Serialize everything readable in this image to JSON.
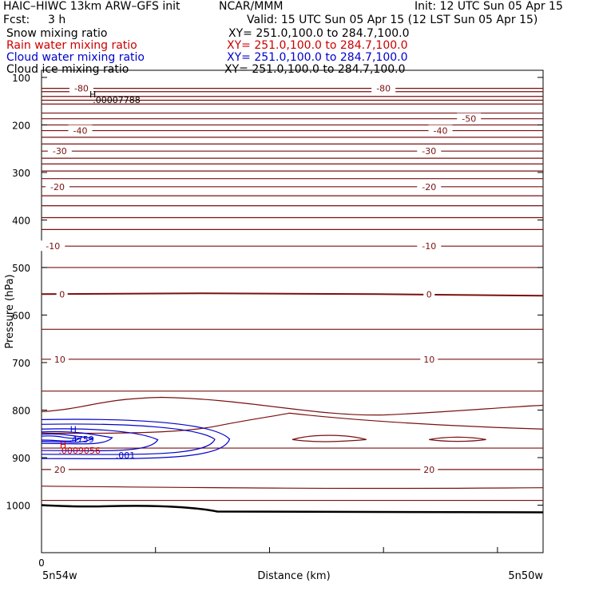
{
  "header": {
    "title_left": "HAIC–HIWC 13km ARW–GFS init",
    "org": "NCAR/MMM",
    "init": "Init: 12 UTC Sun 05 Apr 15",
    "fcst_label": "Fcst:",
    "fcst_value": "3 h",
    "valid": "Valid: 15 UTC Sun 05 Apr 15 (12 LST Sun 05 Apr 15)"
  },
  "legend": [
    {
      "field": "Snow mixing ratio",
      "xy": "XY= 251.0,100.0 to 284.7,100.0",
      "color": "#000000"
    },
    {
      "field": "Rain water mixing ratio",
      "xy": "XY= 251.0,100.0 to 284.7,100.0",
      "color": "#cc0000"
    },
    {
      "field": "Cloud water mixing ratio",
      "xy": "XY= 251.0,100.0 to 284.7,100.0",
      "color": "#0000cc"
    },
    {
      "field": "Cloud ice mixing ratio",
      "xy": "XY= 251.0,100.0 to 284.7,100.0",
      "color": "#000000"
    }
  ],
  "chart_data": {
    "type": "contour cross-section",
    "ylabel": "Pressure (hPa)",
    "xlabel": "Distance (km)",
    "yticks": [
      100,
      200,
      300,
      400,
      500,
      600,
      700,
      800,
      900,
      1000
    ],
    "ylim": [
      1100,
      85
    ],
    "xlim": [
      0,
      4.4
    ],
    "x_tick_label_origin": "0",
    "x_end_labels": [
      "5n54w",
      "5n50w"
    ],
    "colors": {
      "temperature": "#7a1010",
      "cloud_water": "#0000cc",
      "rain": "#cc0000",
      "ground": "#000000"
    },
    "temperature_isotherm_levels": [
      123,
      130,
      140,
      148,
      156,
      175,
      187,
      200,
      212,
      226,
      240,
      255,
      270,
      282,
      297,
      313,
      330,
      349,
      370,
      395,
      420,
      455,
      500,
      556,
      630,
      693,
      760,
      790,
      840,
      880,
      925,
      960,
      990
    ],
    "temperature_labels": [
      {
        "text": "-80",
        "x": 0.35,
        "p": 123
      },
      {
        "text": "-80",
        "x": 3.0,
        "p": 123
      },
      {
        "text": "-50",
        "x": 3.75,
        "p": 187
      },
      {
        "text": "-40",
        "x": 0.34,
        "p": 212
      },
      {
        "text": "-40",
        "x": 3.5,
        "p": 212
      },
      {
        "text": "-30",
        "x": 0.16,
        "p": 255
      },
      {
        "text": "-30",
        "x": 3.4,
        "p": 255
      },
      {
        "text": "-20",
        "x": 0.14,
        "p": 330
      },
      {
        "text": "-20",
        "x": 3.4,
        "p": 330
      },
      {
        "text": "-10",
        "x": 0.1,
        "p": 455
      },
      {
        "text": "-10",
        "x": 3.4,
        "p": 455
      },
      {
        "text": "0",
        "x": 0.18,
        "p": 556
      },
      {
        "text": "0",
        "x": 3.4,
        "p": 556
      },
      {
        "text": "10",
        "x": 0.16,
        "p": 693
      },
      {
        "text": "10",
        "x": 3.4,
        "p": 693
      },
      {
        "text": "20",
        "x": 0.16,
        "p": 925
      },
      {
        "text": "20",
        "x": 3.4,
        "p": 925
      }
    ],
    "annotations": [
      {
        "text": "H",
        "x": 0.42,
        "p": 135,
        "color": "#000000"
      },
      {
        "text": ".00007788",
        "x": 0.45,
        "p": 147,
        "color": "#000000"
      },
      {
        "text": "H",
        "x": 0.25,
        "p": 840,
        "color": "#0000cc"
      },
      {
        "text": ".4759",
        "x": 0.24,
        "p": 861,
        "color": "#0000cc"
      },
      {
        "text": "H",
        "x": 0.16,
        "p": 872,
        "color": "#cc0000"
      },
      {
        "text": ".0009056",
        "x": 0.15,
        "p": 885,
        "color": "#cc0000"
      },
      {
        "text": ".001",
        "x": 0.65,
        "p": 895,
        "color": "#0000cc"
      }
    ]
  }
}
